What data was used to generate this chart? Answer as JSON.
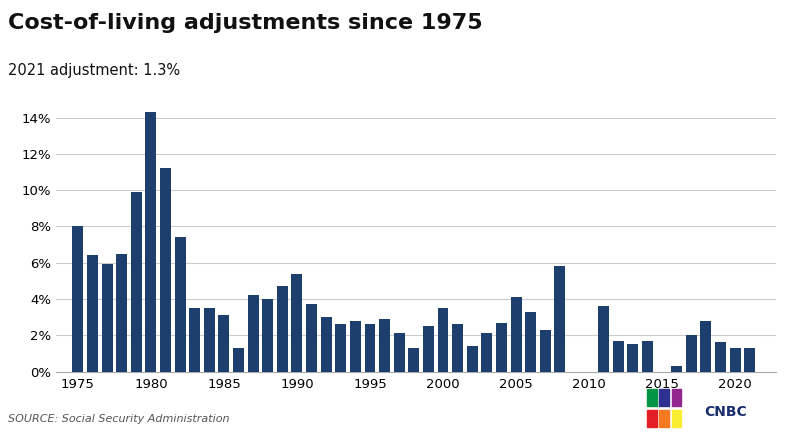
{
  "title": "Cost-of-living adjustments since 1975",
  "subtitle": "2021 adjustment: 1.3%",
  "source": "SOURCE: Social Security Administration",
  "bar_color": "#1d3f6e",
  "background_color": "#ffffff",
  "years": [
    1975,
    1976,
    1977,
    1978,
    1979,
    1980,
    1981,
    1982,
    1983,
    1984,
    1985,
    1986,
    1987,
    1988,
    1989,
    1990,
    1991,
    1992,
    1993,
    1994,
    1995,
    1996,
    1997,
    1998,
    1999,
    2000,
    2001,
    2002,
    2003,
    2004,
    2005,
    2006,
    2007,
    2008,
    2009,
    2010,
    2011,
    2012,
    2013,
    2014,
    2015,
    2016,
    2017,
    2018,
    2019,
    2020,
    2021
  ],
  "values": [
    8.0,
    6.4,
    5.9,
    6.5,
    9.9,
    14.3,
    11.2,
    7.4,
    3.5,
    3.5,
    3.1,
    1.3,
    4.2,
    4.0,
    4.7,
    5.4,
    3.7,
    3.0,
    2.6,
    2.8,
    2.6,
    2.9,
    2.1,
    1.3,
    2.5,
    3.5,
    2.6,
    1.4,
    2.1,
    2.7,
    4.1,
    3.3,
    2.3,
    5.8,
    0.0,
    0.0,
    3.6,
    1.7,
    1.5,
    1.7,
    0.0,
    0.3,
    2.0,
    2.8,
    1.6,
    1.3,
    1.3
  ],
  "ylim": [
    0,
    15
  ],
  "yticks": [
    0,
    2,
    4,
    6,
    8,
    10,
    12,
    14
  ],
  "xtick_positions": [
    1975,
    1980,
    1985,
    1990,
    1995,
    2000,
    2005,
    2010,
    2015,
    2020
  ],
  "grid_color": "#cccccc",
  "title_fontsize": 16,
  "subtitle_fontsize": 10.5,
  "tick_fontsize": 9.5,
  "source_fontsize": 8
}
